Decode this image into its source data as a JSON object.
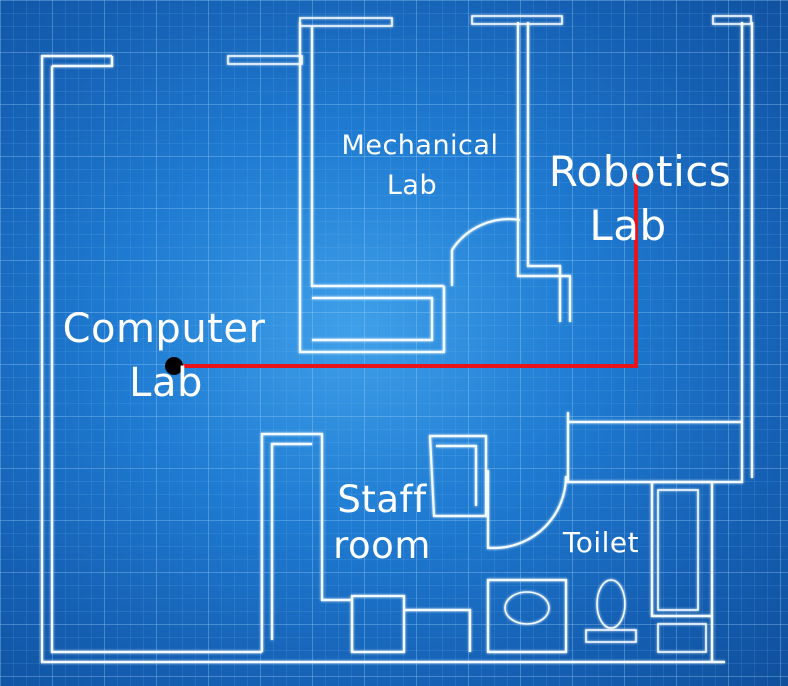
{
  "rooms": {
    "mechanical_lab": {
      "line1": "Mechanical",
      "line2": "Lab"
    },
    "robotics_lab": {
      "line1": "Robotics",
      "line2": "Lab"
    },
    "computer_lab": {
      "line1": "Computer",
      "line2": "Lab"
    },
    "staff_room": {
      "line1": "Staff",
      "line2": "room"
    },
    "toilet": {
      "label": "Toilet"
    }
  },
  "path": {
    "color": "#e8141c",
    "from": "Computer Lab",
    "to": "Robotics Lab",
    "start_marker_color": "#000000"
  },
  "colors": {
    "background": "#1b6fc6",
    "lines": "#f4fbff",
    "grid": "#6fb3ee"
  }
}
